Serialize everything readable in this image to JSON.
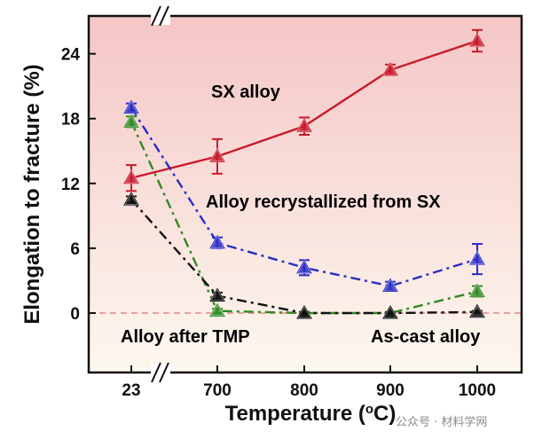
{
  "chart_data": {
    "type": "line",
    "xlabel": "Temperature (",
    "xlabel_sup": "o",
    "xlabel_tail": "C)",
    "ylabel": "Elongation to fracture (%)",
    "categories": [
      "23",
      "700",
      "800",
      "900",
      "1000"
    ],
    "ylim": [
      -5.5,
      27.5
    ],
    "yticks": [
      "0",
      "6",
      "12",
      "18",
      "24"
    ],
    "ytick_values": [
      0,
      6,
      12,
      18,
      24
    ],
    "axis_break": "x and y axes",
    "background": "gradient",
    "reference_line": {
      "y": 0,
      "style": "dashed",
      "color": "#e8a0a0"
    },
    "series": [
      {
        "name": "SX alloy",
        "color": "#c8192b",
        "line_style": "solid",
        "x": [
          "23",
          "700",
          "800",
          "900",
          "1000"
        ],
        "values": [
          12.5,
          14.5,
          17.3,
          22.5,
          25.2
        ],
        "errors": [
          1.2,
          1.6,
          0.8,
          0.5,
          1.0
        ]
      },
      {
        "name": "Alloy recrystallized from SX",
        "color": "#2b2bc8",
        "line_style": "dash-dot",
        "x": [
          "23",
          "700",
          "800",
          "900",
          "1000"
        ],
        "values": [
          19.0,
          6.5,
          4.2,
          2.5,
          5.0
        ],
        "errors": [
          0.4,
          0.5,
          0.7,
          0.4,
          1.4
        ]
      },
      {
        "name": "Alloy after TMP",
        "color": "#2f8a24",
        "line_style": "dash-dot",
        "x": [
          "23",
          "700",
          "800",
          "900",
          "1000"
        ],
        "values": [
          17.7,
          0.2,
          0.0,
          0.0,
          2.0
        ],
        "errors": [
          0.5,
          0.2,
          0.1,
          0.1,
          0.5
        ]
      },
      {
        "name": "As-cast alloy",
        "color": "#111111",
        "line_style": "dash-dot",
        "x": [
          "23",
          "700",
          "800",
          "900",
          "1000"
        ],
        "values": [
          10.5,
          1.6,
          0.0,
          0.0,
          0.1
        ],
        "errors": [
          0.3,
          0.3,
          0.1,
          0.1,
          0.1
        ]
      }
    ]
  },
  "watermark": "公众号 · 材料学网",
  "colors": {
    "bg_top": "#f5c6c6",
    "bg_bottom": "#fcf8ee"
  }
}
